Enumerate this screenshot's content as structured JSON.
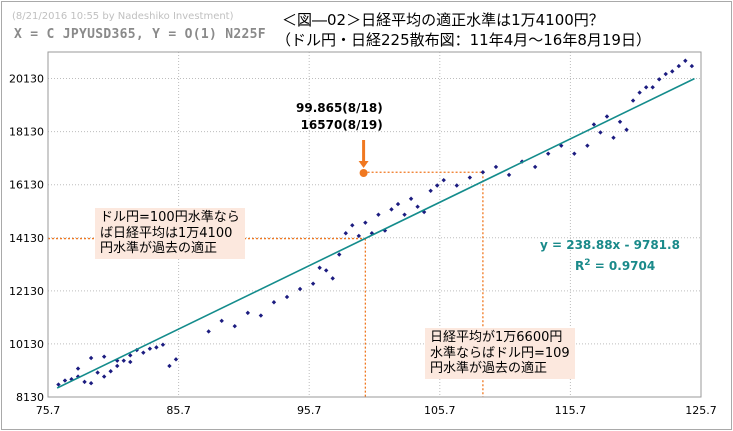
{
  "header": {
    "credit": "(8/21/2016 10:55 by Nadeshiko Investment)",
    "axes_formula": "X = C JPYUSD365,  Y = O(1) N225F",
    "title_line1": "＜図―02＞日経平均の適正水準は1万4100円？",
    "title_line2": "（ドル円・日経225散布図：11年4月〜16年8月19日）"
  },
  "annotations": {
    "left_box": "ドル円=100円水準なら\nば日経平均は1万4100\n円水準が過去の適正",
    "bottom_box": "日経平均が1万6600円\n水準ならばドル円=109\n円水準が過去の適正",
    "callout": "99.865(8/18)\n16570(8/19)",
    "equation": "y = 238.88x - 9781.8",
    "r2_prefix": "R",
    "r2_exp": "2",
    "r2_suffix": " = 0.9704"
  },
  "colors": {
    "points": "#1c1c80",
    "trend": "#148c8c",
    "highlight": "#f07820",
    "box": "#fce8de"
  },
  "chart_data": {
    "type": "scatter",
    "title": "＜図―02＞日経平均の適正水準は1万4100円？",
    "xlabel": "",
    "ylabel": "",
    "xlim": [
      75.7,
      125.7
    ],
    "ylim": [
      8130,
      21130
    ],
    "x_ticks": [
      "75.7",
      "85.7",
      "95.7",
      "105.7",
      "115.7",
      "125.7"
    ],
    "y_ticks": [
      "8130",
      "10130",
      "12130",
      "14130",
      "16130",
      "18130",
      "20130"
    ],
    "grid": true,
    "trendline": {
      "slope": 238.88,
      "intercept": -9781.8,
      "r2": 0.9704
    },
    "highlight_point": {
      "x": 99.865,
      "y": 16570
    },
    "reference_lines": [
      {
        "label": "left",
        "x_from": 75.7,
        "x_to": 100,
        "y": 14100
      },
      {
        "label": "upper",
        "x_from": 99.865,
        "x_to": 109,
        "y": 16600
      }
    ],
    "series": [
      {
        "values": [
          [
            76.5,
            8600
          ],
          [
            77.0,
            8750
          ],
          [
            77.5,
            8800
          ],
          [
            78.0,
            8900
          ],
          [
            78.5,
            8700
          ],
          [
            79.0,
            8650
          ],
          [
            79.5,
            9050
          ],
          [
            80.0,
            8900
          ],
          [
            80.5,
            9100
          ],
          [
            81.0,
            9300
          ],
          [
            81.5,
            9500
          ],
          [
            82.0,
            9700
          ],
          [
            82.5,
            9900
          ],
          [
            83.0,
            9800
          ],
          [
            83.5,
            9950
          ],
          [
            84.0,
            10000
          ],
          [
            78.0,
            9200
          ],
          [
            79.0,
            9600
          ],
          [
            80.0,
            9650
          ],
          [
            81.0,
            9500
          ],
          [
            82.0,
            9450
          ],
          [
            84.5,
            10100
          ],
          [
            85.0,
            9300
          ],
          [
            85.5,
            9550
          ],
          [
            88.0,
            10600
          ],
          [
            89.0,
            11000
          ],
          [
            90.0,
            10800
          ],
          [
            91.0,
            11300
          ],
          [
            92.0,
            11200
          ],
          [
            93.0,
            11700
          ],
          [
            94.0,
            11900
          ],
          [
            95.0,
            12200
          ],
          [
            96.0,
            12400
          ],
          [
            97.0,
            12900
          ],
          [
            96.5,
            13000
          ],
          [
            97.5,
            12600
          ],
          [
            98.0,
            13500
          ],
          [
            98.5,
            14300
          ],
          [
            99.0,
            14600
          ],
          [
            99.5,
            14200
          ],
          [
            100.0,
            14700
          ],
          [
            100.5,
            14300
          ],
          [
            101.0,
            15000
          ],
          [
            101.5,
            14400
          ],
          [
            102.0,
            15200
          ],
          [
            102.5,
            15400
          ],
          [
            103.0,
            15000
          ],
          [
            103.5,
            15600
          ],
          [
            104.0,
            15300
          ],
          [
            104.5,
            15100
          ],
          [
            105.0,
            15900
          ],
          [
            105.5,
            16100
          ],
          [
            106.0,
            16300
          ],
          [
            107.0,
            16100
          ],
          [
            108.0,
            16400
          ],
          [
            109.0,
            16600
          ],
          [
            110.0,
            16800
          ],
          [
            111.0,
            16500
          ],
          [
            112.0,
            17000
          ],
          [
            113.0,
            16800
          ],
          [
            114.0,
            17300
          ],
          [
            115.0,
            17600
          ],
          [
            116.0,
            17300
          ],
          [
            117.0,
            17600
          ],
          [
            117.5,
            18400
          ],
          [
            118.0,
            18100
          ],
          [
            118.5,
            18700
          ],
          [
            119.0,
            17900
          ],
          [
            119.5,
            18500
          ],
          [
            120.0,
            18200
          ],
          [
            120.5,
            19300
          ],
          [
            121.0,
            19600
          ],
          [
            121.5,
            19800
          ],
          [
            122.0,
            19800
          ],
          [
            122.5,
            20100
          ],
          [
            123.0,
            20300
          ],
          [
            123.5,
            20400
          ],
          [
            124.0,
            20600
          ],
          [
            124.5,
            20800
          ],
          [
            125.0,
            20600
          ]
        ]
      }
    ]
  }
}
